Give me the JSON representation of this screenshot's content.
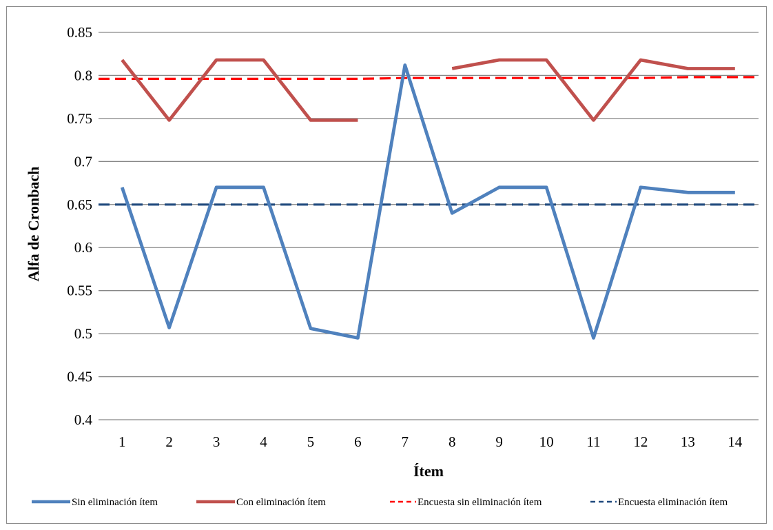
{
  "chart_data": {
    "type": "line",
    "title": "",
    "xlabel": "Ítem",
    "ylabel": "Alfa de Cronbach",
    "ylim": [
      0.4,
      0.85
    ],
    "ystep": 0.05,
    "grid": true,
    "legend_position": "bottom",
    "categories": [
      "1",
      "2",
      "3",
      "4",
      "5",
      "6",
      "7",
      "8",
      "9",
      "10",
      "11",
      "12",
      "13",
      "14"
    ],
    "yticks": [
      "0.4",
      "0.45",
      "0.5",
      "0.55",
      "0.6",
      "0.65",
      "0.7",
      "0.75",
      "0.8",
      "0.85"
    ],
    "series": [
      {
        "name": "Sin eliminación ítem",
        "color": "#4F81BD",
        "style": "solid",
        "values": [
          0.67,
          0.507,
          0.67,
          0.67,
          0.506,
          0.495,
          0.812,
          0.64,
          0.67,
          0.67,
          0.495,
          0.67,
          0.664,
          0.664
        ]
      },
      {
        "name": "Con eliminación ítem",
        "color": "#C0504D",
        "style": "solid",
        "values": [
          0.818,
          0.748,
          0.818,
          0.818,
          0.748,
          0.748,
          null,
          0.808,
          0.818,
          0.818,
          0.748,
          0.818,
          0.808,
          0.808
        ]
      },
      {
        "name": "Encuesta sin eliminación ítem",
        "color": "#FF0000",
        "style": "dashed",
        "values": [
          0.796,
          0.796,
          0.796,
          0.796,
          0.796,
          0.796,
          0.797,
          0.797,
          0.797,
          0.797,
          0.797,
          0.797,
          0.798,
          0.798
        ]
      },
      {
        "name": "Encuesta eliminación ítem",
        "color": "#1F497D",
        "style": "dashed",
        "values": [
          0.65,
          0.65,
          0.65,
          0.65,
          0.65,
          0.65,
          0.65,
          0.65,
          0.65,
          0.65,
          0.65,
          0.65,
          0.65,
          0.65
        ]
      }
    ]
  }
}
